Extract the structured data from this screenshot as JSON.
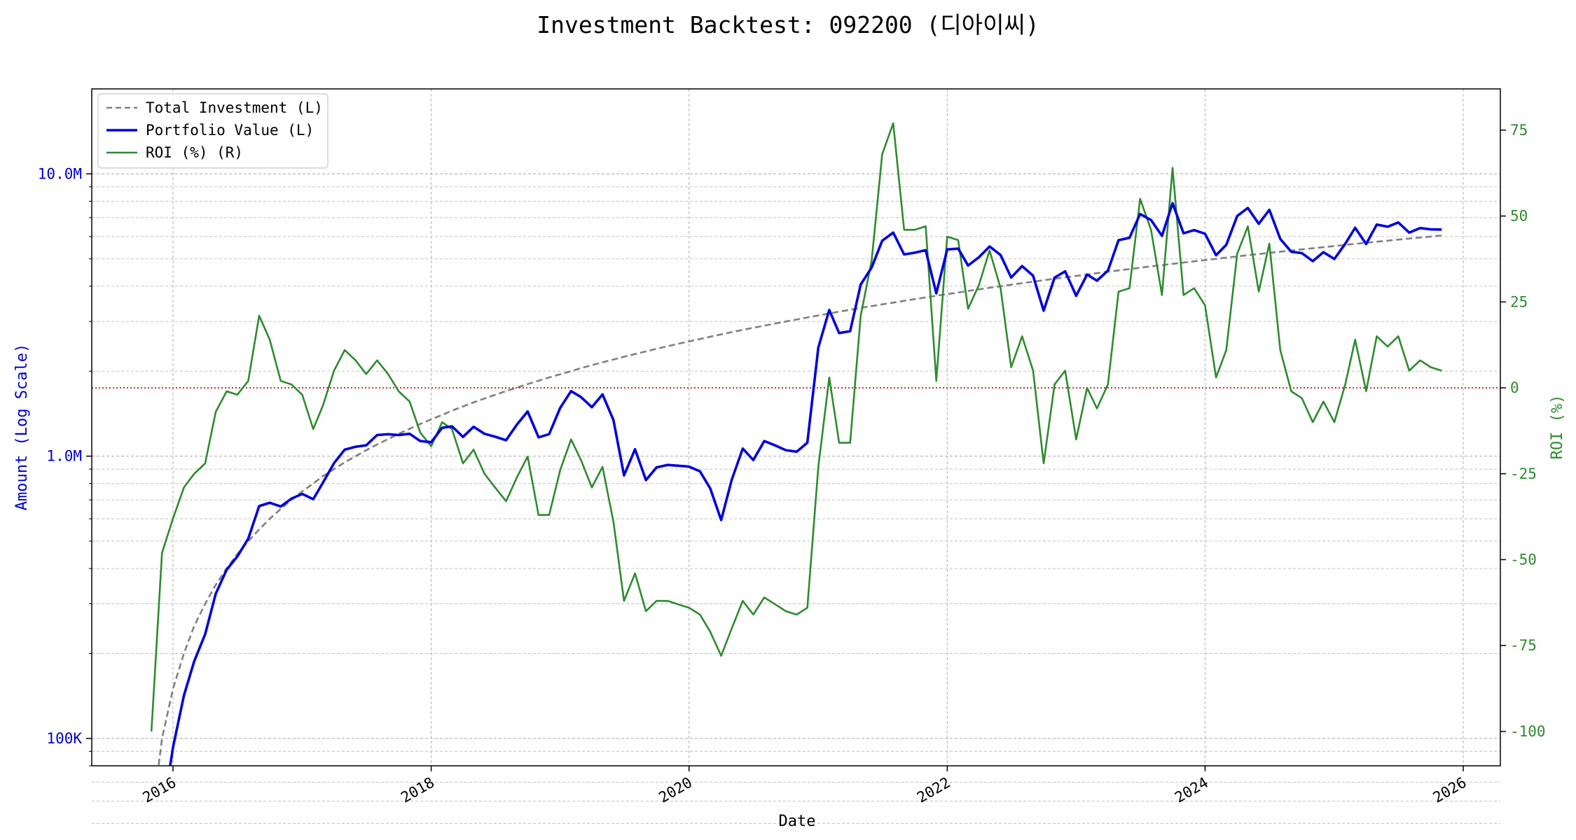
{
  "chart_data": {
    "type": "line",
    "title": "Investment Backtest: 092200 (디아이씨)",
    "xlabel": "Date",
    "ylabel_left": "Amount (Log Scale)",
    "ylabel_right": "ROI (%)",
    "x_range": [
      "2015-05-16",
      "2026-04-16"
    ],
    "ylim_left": [
      80000,
      20000000
    ],
    "ylim_right": [
      -110,
      87
    ],
    "y_scale_left": "log",
    "grid": true,
    "legend_position": "top-left",
    "x_ticks": [
      {
        "date": "2016-01-01",
        "label": "2016"
      },
      {
        "date": "2018-01-01",
        "label": "2018"
      },
      {
        "date": "2020-01-01",
        "label": "2020"
      },
      {
        "date": "2022-01-01",
        "label": "2022"
      },
      {
        "date": "2024-01-01",
        "label": "2024"
      },
      {
        "date": "2026-01-01",
        "label": "2026"
      }
    ],
    "y_ticks_left": [
      {
        "value": 100000,
        "label": "100K"
      },
      {
        "value": 1000000,
        "label": "1.0M"
      },
      {
        "value": 10000000,
        "label": "10.0M"
      }
    ],
    "y_ticks_right": [
      {
        "value": 75,
        "label": "75"
      },
      {
        "value": 50,
        "label": "50"
      },
      {
        "value": 25,
        "label": "25"
      },
      {
        "value": 0,
        "label": "0"
      },
      {
        "value": -25,
        "label": "-25"
      },
      {
        "value": -50,
        "label": "-50"
      },
      {
        "value": -75,
        "label": "-75"
      },
      {
        "value": -100,
        "label": "-100"
      }
    ],
    "reference_line": {
      "axis": "right",
      "value": 0
    },
    "start_month": "2015-11",
    "series": [
      {
        "name": "Total Investment (L)",
        "axis": "left",
        "style": "dashed",
        "color": "#808080",
        "monthly_increment": 50000
      },
      {
        "name": "Portfolio Value (L)",
        "axis": "left",
        "style": "solid",
        "color": "#0000dd"
      },
      {
        "name": "ROI (%) (R)",
        "axis": "right",
        "style": "solid",
        "color": "#2e8b2e",
        "values": [
          -100,
          -48,
          -38,
          -29,
          -25,
          -22,
          -7,
          -1,
          -2,
          2,
          21,
          14,
          2,
          1,
          -2,
          -12,
          -5,
          5,
          11,
          8,
          4,
          8,
          4,
          -1,
          -4,
          -13,
          -17,
          -10,
          -12,
          -22,
          -18,
          -25,
          -29,
          -33,
          -26,
          -20,
          -37,
          -37,
          -24,
          -15,
          -21,
          -29,
          -23,
          -39,
          -62,
          -54,
          -65,
          -62,
          -62,
          -63,
          -64,
          -66,
          -71,
          -78,
          -70,
          -62,
          -66,
          -61,
          -63,
          -65,
          -66,
          -64,
          -23,
          3,
          -16,
          -16,
          21,
          37,
          68,
          77,
          46,
          46,
          47,
          2,
          44,
          43,
          23,
          30,
          40,
          29,
          6,
          15,
          5,
          -22,
          1,
          5,
          -15,
          0,
          -6,
          1,
          28,
          29,
          55,
          46,
          27,
          64,
          27,
          29,
          24,
          3,
          11,
          39,
          47,
          28,
          42,
          11,
          -1,
          -3,
          -10,
          -4,
          -10,
          1,
          14,
          -1,
          15,
          12,
          15,
          5,
          8,
          6,
          5
        ]
      }
    ]
  }
}
